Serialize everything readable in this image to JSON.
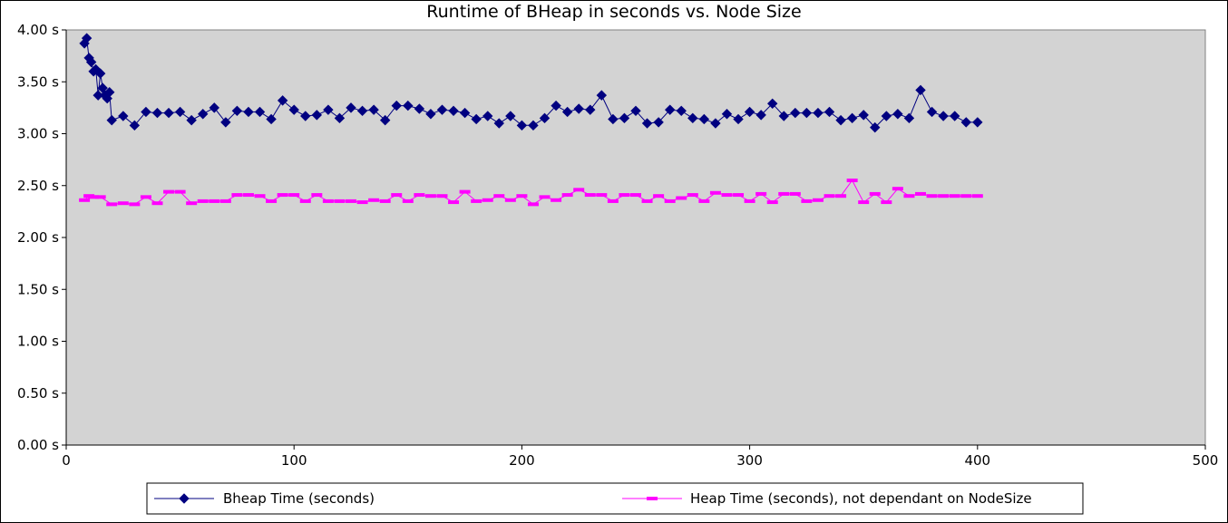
{
  "chart_data": {
    "type": "line",
    "title": "Runtime of BHeap in seconds vs. Node Size",
    "xlabel": "",
    "ylabel": "",
    "xlim": [
      0,
      500
    ],
    "ylim": [
      0,
      4
    ],
    "x_ticks": [
      "0",
      "100",
      "200",
      "300",
      "400",
      "500"
    ],
    "x_tick_values": [
      0,
      100,
      200,
      300,
      400,
      500
    ],
    "y_ticks": [
      "0.00 s",
      "0.50 s",
      "1.00 s",
      "1.50 s",
      "2.00 s",
      "2.50 s",
      "3.00 s",
      "3.50 s",
      "4.00 s"
    ],
    "y_tick_values": [
      0,
      0.5,
      1.0,
      1.5,
      2.0,
      2.5,
      3.0,
      3.5,
      4.0
    ],
    "grid": false,
    "legend_position": "bottom",
    "plot_background": "#d3d3d3",
    "series": [
      {
        "name": "Bheap Time (seconds)",
        "color": "#000080",
        "marker": "diamond",
        "x": [
          8,
          9,
          10,
          11,
          12,
          13,
          14,
          15,
          16,
          17,
          18,
          19,
          20,
          25,
          30,
          35,
          40,
          45,
          50,
          55,
          60,
          65,
          70,
          75,
          80,
          85,
          90,
          95,
          100,
          105,
          110,
          115,
          120,
          125,
          130,
          135,
          140,
          145,
          150,
          155,
          160,
          165,
          170,
          175,
          180,
          185,
          190,
          195,
          200,
          205,
          210,
          215,
          220,
          225,
          230,
          235,
          240,
          245,
          250,
          255,
          260,
          265,
          270,
          275,
          280,
          285,
          290,
          295,
          300,
          305,
          310,
          315,
          320,
          325,
          330,
          335,
          340,
          345,
          350,
          355,
          360,
          365,
          370,
          375,
          380,
          385,
          390,
          395,
          400
        ],
        "values": [
          3.87,
          3.92,
          3.73,
          3.69,
          3.6,
          3.62,
          3.37,
          3.58,
          3.44,
          3.37,
          3.34,
          3.4,
          3.13,
          3.17,
          3.08,
          3.21,
          3.2,
          3.2,
          3.21,
          3.13,
          3.19,
          3.25,
          3.11,
          3.22,
          3.21,
          3.21,
          3.14,
          3.32,
          3.23,
          3.17,
          3.18,
          3.23,
          3.15,
          3.25,
          3.22,
          3.23,
          3.13,
          3.27,
          3.27,
          3.24,
          3.19,
          3.23,
          3.22,
          3.2,
          3.14,
          3.17,
          3.1,
          3.17,
          3.08,
          3.08,
          3.15,
          3.27,
          3.21,
          3.24,
          3.23,
          3.37,
          3.14,
          3.15,
          3.22,
          3.1,
          3.11,
          3.23,
          3.22,
          3.15,
          3.14,
          3.1,
          3.19,
          3.14,
          3.21,
          3.18,
          3.29,
          3.17,
          3.2,
          3.2,
          3.2,
          3.21,
          3.13,
          3.15,
          3.18,
          3.06,
          3.17,
          3.19,
          3.15,
          3.42,
          3.21,
          3.17,
          3.17,
          3.11,
          3.11
        ]
      },
      {
        "name": "Heap Time (seconds), not dependant on NodeSize",
        "color": "#ff00ff",
        "marker": "dash",
        "x": [
          8,
          10,
          12,
          15,
          20,
          25,
          30,
          35,
          40,
          45,
          50,
          55,
          60,
          65,
          70,
          75,
          80,
          85,
          90,
          95,
          100,
          105,
          110,
          115,
          120,
          125,
          130,
          135,
          140,
          145,
          150,
          155,
          160,
          165,
          170,
          175,
          180,
          185,
          190,
          195,
          200,
          205,
          210,
          215,
          220,
          225,
          230,
          235,
          240,
          245,
          250,
          255,
          260,
          265,
          270,
          275,
          280,
          285,
          290,
          295,
          300,
          305,
          310,
          315,
          320,
          325,
          330,
          335,
          340,
          345,
          350,
          355,
          360,
          365,
          370,
          375,
          380,
          385,
          390,
          395,
          400
        ],
        "values": [
          2.36,
          2.4,
          2.39,
          2.39,
          2.32,
          2.33,
          2.32,
          2.39,
          2.33,
          2.44,
          2.44,
          2.33,
          2.35,
          2.35,
          2.35,
          2.41,
          2.41,
          2.4,
          2.35,
          2.41,
          2.41,
          2.35,
          2.41,
          2.35,
          2.35,
          2.35,
          2.34,
          2.36,
          2.35,
          2.41,
          2.35,
          2.41,
          2.4,
          2.4,
          2.34,
          2.44,
          2.35,
          2.36,
          2.4,
          2.36,
          2.4,
          2.32,
          2.39,
          2.36,
          2.41,
          2.46,
          2.41,
          2.41,
          2.35,
          2.41,
          2.41,
          2.35,
          2.4,
          2.35,
          2.38,
          2.41,
          2.35,
          2.43,
          2.41,
          2.41,
          2.35,
          2.42,
          2.34,
          2.42,
          2.42,
          2.35,
          2.36,
          2.4,
          2.4,
          2.55,
          2.34,
          2.42,
          2.34,
          2.47,
          2.4,
          2.42,
          2.4,
          2.4,
          2.4,
          2.4,
          2.4
        ]
      }
    ]
  }
}
